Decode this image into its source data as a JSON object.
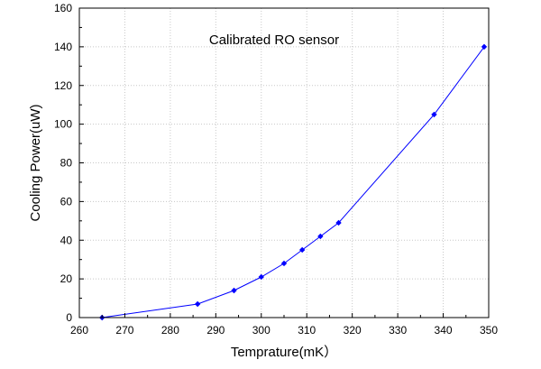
{
  "chart_data": {
    "type": "line",
    "annotation": "Calibrated RO sensor",
    "xlabel": "Temprature(mK）",
    "ylabel": "Cooling Power(uW)",
    "xlim": [
      260,
      350
    ],
    "ylim": [
      0,
      160
    ],
    "x_ticks": [
      260,
      270,
      280,
      290,
      300,
      310,
      320,
      330,
      340,
      350
    ],
    "y_ticks": [
      0,
      20,
      40,
      60,
      80,
      100,
      120,
      140,
      160
    ],
    "grid": true,
    "series": [
      {
        "color": "#0000ff",
        "marker": "diamond",
        "x": [
          265,
          286,
          294,
          300,
          305,
          309,
          313,
          317,
          338,
          349
        ],
        "y": [
          0,
          7,
          14,
          21,
          28,
          35,
          42,
          49,
          105,
          140
        ]
      }
    ]
  }
}
